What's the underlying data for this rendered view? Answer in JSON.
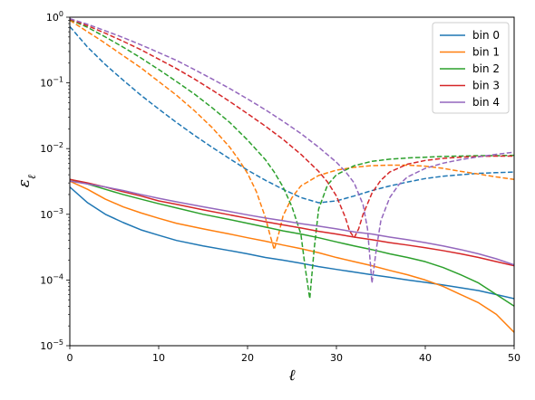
{
  "chart_data": {
    "type": "line",
    "title": "",
    "xlabel": "ℓ",
    "ylabel": "ε",
    "ylabel_subscript": "ℓ",
    "xlim": [
      0,
      50
    ],
    "ylim": [
      1e-05,
      1
    ],
    "yscale": "log",
    "grid": false,
    "legend_position": "top-right",
    "xticks": [
      0,
      10,
      20,
      30,
      40,
      50
    ],
    "yticks": [
      {
        "value": 1e-05,
        "base": "10",
        "exp": "−5"
      },
      {
        "value": 0.0001,
        "base": "10",
        "exp": "−4"
      },
      {
        "value": 0.001,
        "base": "10",
        "exp": "−3"
      },
      {
        "value": 0.01,
        "base": "10",
        "exp": "−2"
      },
      {
        "value": 0.1,
        "base": "10",
        "exp": "−1"
      },
      {
        "value": 1,
        "base": "10",
        "exp": "0"
      }
    ],
    "series": [
      {
        "name": "bin 0",
        "color": "#1f77b4",
        "solid": {
          "x": [
            0,
            2,
            4,
            6,
            8,
            10,
            12,
            15,
            18,
            20,
            22,
            24,
            26,
            28,
            30,
            32,
            34,
            36,
            38,
            40,
            42,
            44,
            46,
            48,
            50
          ],
          "y": [
            0.0026,
            0.0015,
            0.001,
            0.00075,
            0.00058,
            0.00048,
            0.0004,
            0.00033,
            0.00028,
            0.00025,
            0.00022,
            0.0002,
            0.00018,
            0.00016,
            0.000145,
            0.000132,
            0.00012,
            0.00011,
            0.0001,
            9.2e-05,
            8.4e-05,
            7.6e-05,
            6.9e-05,
            6e-05,
            5.2e-05
          ]
        },
        "dashed": {
          "x": [
            0,
            2,
            4,
            6,
            8,
            10,
            12,
            14,
            16,
            18,
            20,
            22,
            24,
            26,
            28,
            30,
            32,
            34,
            36,
            38,
            40,
            42,
            44,
            46,
            48,
            50
          ],
          "y": [
            0.72,
            0.35,
            0.19,
            0.11,
            0.065,
            0.04,
            0.025,
            0.016,
            0.0105,
            0.007,
            0.0047,
            0.0033,
            0.0024,
            0.0018,
            0.0015,
            0.0016,
            0.0019,
            0.0023,
            0.0027,
            0.0031,
            0.0035,
            0.0038,
            0.004,
            0.0042,
            0.0043,
            0.0044
          ]
        }
      },
      {
        "name": "bin 1",
        "color": "#ff7f0e",
        "solid": {
          "x": [
            0,
            2,
            4,
            6,
            8,
            10,
            12,
            15,
            18,
            20,
            22,
            24,
            26,
            28,
            30,
            32,
            34,
            36,
            38,
            40,
            42,
            44,
            46,
            48,
            50
          ],
          "y": [
            0.0032,
            0.0024,
            0.0017,
            0.0013,
            0.00105,
            0.00087,
            0.00073,
            0.0006,
            0.0005,
            0.00044,
            0.00039,
            0.00034,
            0.0003,
            0.00026,
            0.00022,
            0.00019,
            0.000165,
            0.00014,
            0.00012,
            0.0001,
            8e-05,
            6e-05,
            4.5e-05,
            3e-05,
            1.6e-05
          ]
        },
        "dashed": {
          "x": [
            0,
            2,
            4,
            6,
            8,
            10,
            12,
            14,
            16,
            18,
            19,
            20,
            21,
            22,
            22.5,
            23,
            23.5,
            24,
            25,
            26,
            28,
            30,
            32,
            34,
            36,
            38,
            40,
            42,
            44,
            46,
            48,
            50
          ],
          "y": [
            0.9,
            0.6,
            0.4,
            0.26,
            0.17,
            0.105,
            0.065,
            0.038,
            0.021,
            0.0105,
            0.0068,
            0.0042,
            0.0022,
            0.0009,
            0.0005,
            0.00029,
            0.0005,
            0.00095,
            0.0018,
            0.0027,
            0.0039,
            0.0047,
            0.0052,
            0.0055,
            0.0056,
            0.0056,
            0.0054,
            0.005,
            0.0045,
            0.0041,
            0.0037,
            0.0034
          ]
        }
      },
      {
        "name": "bin 2",
        "color": "#2ca02c",
        "solid": {
          "x": [
            0,
            2,
            4,
            6,
            8,
            10,
            12,
            15,
            18,
            20,
            22,
            24,
            26,
            28,
            30,
            32,
            34,
            36,
            38,
            40,
            42,
            44,
            46,
            48,
            50
          ],
          "y": [
            0.0034,
            0.0029,
            0.0024,
            0.002,
            0.0017,
            0.00145,
            0.00125,
            0.001,
            0.00083,
            0.00073,
            0.00064,
            0.00056,
            0.0005,
            0.00044,
            0.00038,
            0.00033,
            0.00029,
            0.00025,
            0.00022,
            0.00019,
            0.000155,
            0.00012,
            9e-05,
            6e-05,
            4e-05
          ]
        },
        "dashed": {
          "x": [
            0,
            2,
            4,
            6,
            8,
            10,
            12,
            14,
            16,
            18,
            20,
            22,
            23,
            24,
            25,
            26,
            26.5,
            27,
            27.5,
            28,
            29,
            30,
            32,
            34,
            36,
            38,
            40,
            42,
            44,
            46,
            48,
            50
          ],
          "y": [
            0.92,
            0.7,
            0.5,
            0.35,
            0.24,
            0.16,
            0.105,
            0.068,
            0.042,
            0.025,
            0.0135,
            0.0068,
            0.0044,
            0.0026,
            0.0013,
            0.0005,
            0.00015,
            5.2e-05,
            0.0003,
            0.0012,
            0.0028,
            0.004,
            0.0055,
            0.0064,
            0.0069,
            0.0072,
            0.0074,
            0.0076,
            0.0077,
            0.0078,
            0.0078,
            0.0079
          ]
        }
      },
      {
        "name": "bin 3",
        "color": "#d62728",
        "solid": {
          "x": [
            0,
            2,
            4,
            6,
            8,
            10,
            12,
            15,
            18,
            20,
            22,
            24,
            26,
            28,
            30,
            32,
            34,
            36,
            38,
            40,
            42,
            44,
            46,
            48,
            50
          ],
          "y": [
            0.0034,
            0.003,
            0.0026,
            0.0022,
            0.0019,
            0.0016,
            0.00142,
            0.00117,
            0.00098,
            0.00087,
            0.00077,
            0.00069,
            0.00062,
            0.00055,
            0.0005,
            0.00045,
            0.00041,
            0.00037,
            0.00034,
            0.00031,
            0.00028,
            0.00025,
            0.00022,
            0.00019,
            0.000165
          ]
        },
        "dashed": {
          "x": [
            0,
            2,
            4,
            6,
            8,
            10,
            12,
            14,
            16,
            18,
            20,
            22,
            24,
            26,
            28,
            29,
            30,
            31,
            31.5,
            32,
            32.5,
            33,
            34,
            35,
            36,
            38,
            40,
            42,
            44,
            46,
            48,
            50
          ],
          "y": [
            0.93,
            0.74,
            0.57,
            0.43,
            0.32,
            0.23,
            0.165,
            0.115,
            0.078,
            0.052,
            0.034,
            0.022,
            0.0138,
            0.0082,
            0.0045,
            0.0031,
            0.0019,
            0.0009,
            0.00055,
            0.00044,
            0.0006,
            0.001,
            0.0021,
            0.0033,
            0.0044,
            0.0058,
            0.0066,
            0.0071,
            0.0074,
            0.0076,
            0.0077,
            0.0077
          ]
        }
      },
      {
        "name": "bin 4",
        "color": "#9467bd",
        "solid": {
          "x": [
            0,
            2,
            4,
            6,
            8,
            10,
            12,
            15,
            18,
            20,
            22,
            24,
            26,
            28,
            30,
            32,
            34,
            36,
            38,
            40,
            42,
            44,
            46,
            48,
            50
          ],
          "y": [
            0.0032,
            0.0029,
            0.0026,
            0.0023,
            0.002,
            0.00175,
            0.00155,
            0.0013,
            0.0011,
            0.00098,
            0.00088,
            0.0008,
            0.00072,
            0.00066,
            0.0006,
            0.00054,
            0.0005,
            0.00045,
            0.00041,
            0.00037,
            0.00033,
            0.00029,
            0.00025,
            0.00021,
            0.00017
          ]
        },
        "dashed": {
          "x": [
            0,
            2,
            4,
            6,
            8,
            10,
            12,
            14,
            16,
            18,
            20,
            22,
            24,
            26,
            28,
            30,
            31,
            32,
            33,
            33.5,
            34,
            34.5,
            35,
            36,
            37,
            38,
            40,
            42,
            44,
            46,
            48,
            50
          ],
          "y": [
            0.95,
            0.78,
            0.62,
            0.49,
            0.38,
            0.29,
            0.22,
            0.16,
            0.115,
            0.082,
            0.057,
            0.039,
            0.026,
            0.017,
            0.0105,
            0.0062,
            0.0045,
            0.003,
            0.0014,
            0.0006,
            9e-05,
            0.0003,
            0.0008,
            0.0018,
            0.0028,
            0.0037,
            0.005,
            0.006,
            0.0068,
            0.0075,
            0.0082,
            0.0088
          ]
        }
      }
    ]
  }
}
